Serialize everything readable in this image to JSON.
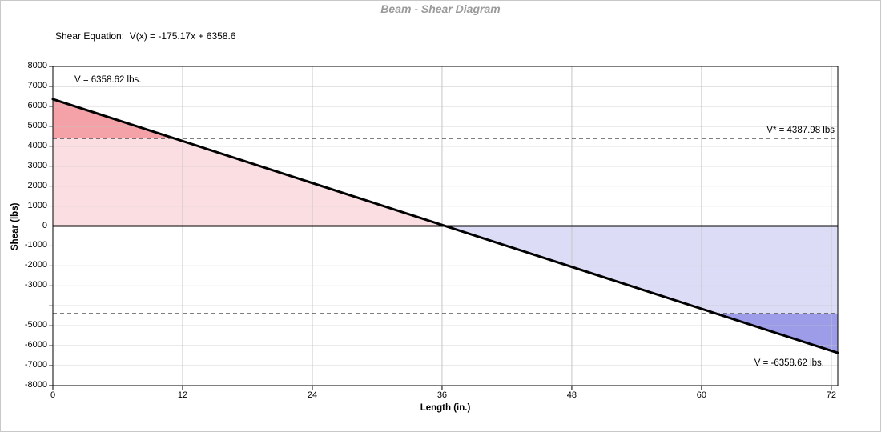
{
  "frame": {
    "background": "#ffffff",
    "border_color": "#c8c8c8"
  },
  "header": {
    "title": "Beam - Shear Diagram",
    "equation_label": "Shear Equation:  V(x) = -175.17x + 6358.6"
  },
  "chart_data": {
    "type": "line",
    "title": "Beam - Shear Diagram",
    "xlabel": "Length (in.)",
    "ylabel": "Shear (lbs)",
    "xlim": [
      0,
      72.6
    ],
    "ylim": [
      -8000,
      8000
    ],
    "grid": true,
    "legend": "none",
    "x_ticks": [
      0,
      12,
      24,
      36,
      48,
      60,
      72
    ],
    "y_ticks": [
      {
        "v": 8000,
        "label": "8000"
      },
      {
        "v": 7000,
        "label": "7000"
      },
      {
        "v": 6000,
        "label": "6000"
      },
      {
        "v": 5000,
        "label": "5000"
      },
      {
        "v": 4000,
        "label": "4000"
      },
      {
        "v": 3000,
        "label": "3000"
      },
      {
        "v": 2000,
        "label": "2000"
      },
      {
        "v": 1000,
        "label": "1000"
      },
      {
        "v": 0,
        "label": "0"
      },
      {
        "v": -1000,
        "label": "-1000"
      },
      {
        "v": -2000,
        "label": "-2000"
      },
      {
        "v": -3000,
        "label": "-3000"
      },
      {
        "v": -4000,
        "label": ""
      },
      {
        "v": -5000,
        "label": "-5000"
      },
      {
        "v": -6000,
        "label": "-6000"
      },
      {
        "v": -7000,
        "label": "-7000"
      },
      {
        "v": -8000,
        "label": "-8000"
      }
    ],
    "shear_line": {
      "slope": -175.17,
      "intercept": 6358.6,
      "start_value": 6358.62,
      "end_value": -6358.62,
      "zero_crossing_x": 36.3
    },
    "v_star": 4387.98,
    "annotations": {
      "v_start": "V = 6358.62 lbs.",
      "v_star": "V* = 4387.98 lbs",
      "v_end": "V = -6358.62 lbs."
    },
    "colors": {
      "positive_fill_light": "#fbdee2",
      "positive_fill_dark": "#f4a2a8",
      "negative_fill_light": "#dcdcf6",
      "negative_fill_dark": "#9c9ce8",
      "grid": "#c6c6c6",
      "axis": "#000000",
      "dashed_line": "#333333",
      "shear_line": "#000000",
      "title_color": "#9a9a9a"
    }
  }
}
